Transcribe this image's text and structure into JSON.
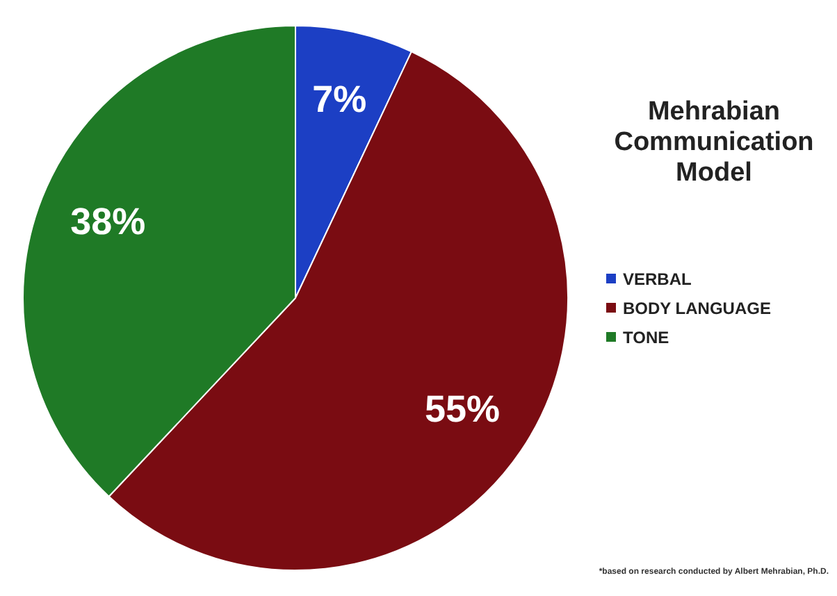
{
  "chart_data": {
    "type": "pie",
    "title": "Mehrabian Communication Model",
    "categories": [
      "VERBAL",
      "BODY LANGUAGE",
      "TONE"
    ],
    "values": [
      7,
      55,
      38
    ],
    "colors": [
      "#1c3fc4",
      "#7a0c12",
      "#1f7a26"
    ],
    "value_labels": [
      "7%",
      "55%",
      "38%"
    ],
    "legend": "right",
    "annotations": [
      "*based on research conducted by Albert Mehrabian, Ph.D."
    ]
  }
}
